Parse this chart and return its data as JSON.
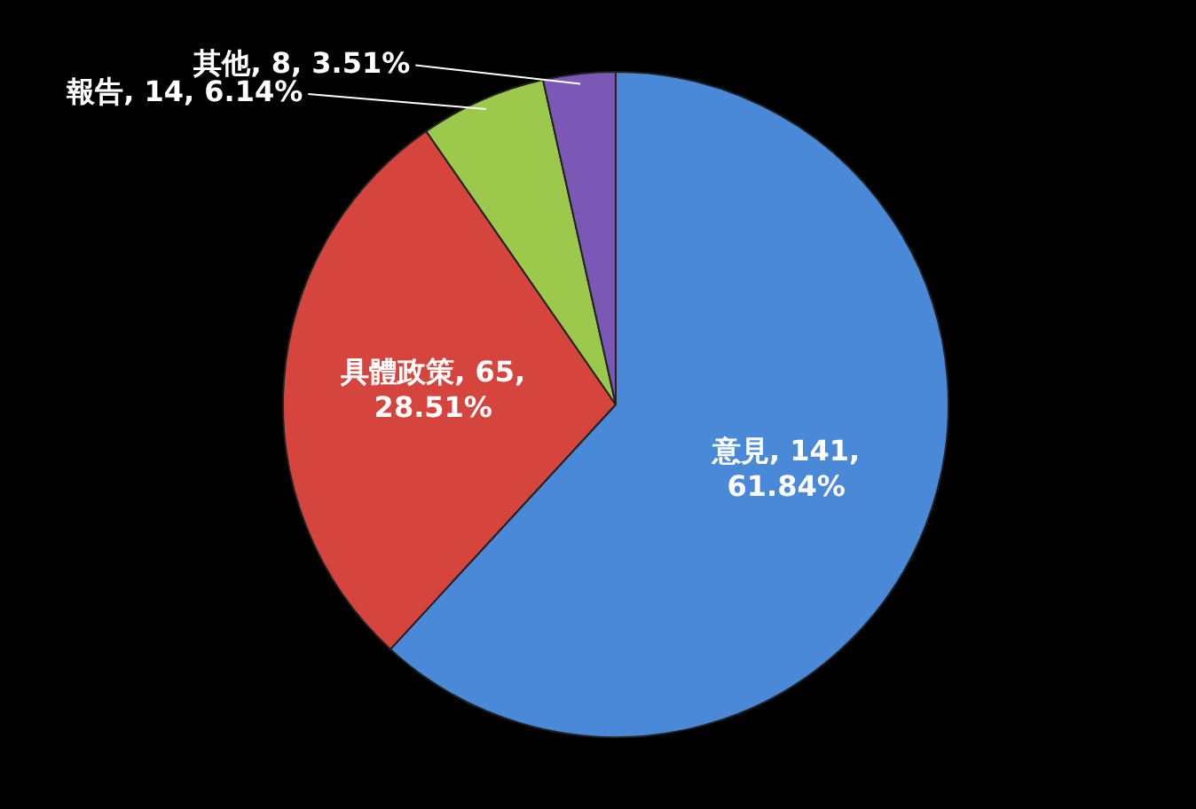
{
  "chart_data": {
    "type": "pie",
    "categories": [
      "意見",
      "具體政策",
      "報告",
      "其他"
    ],
    "values": [
      141,
      65,
      14,
      8
    ],
    "value_labels": [
      "141, 61.84%",
      "65, 28.51%",
      "14, 6.14%",
      "8, 3.51%"
    ],
    "colors": [
      "#4a88d8",
      "#d5443d",
      "#9cc84c",
      "#7c58b6"
    ],
    "legend": false
  }
}
